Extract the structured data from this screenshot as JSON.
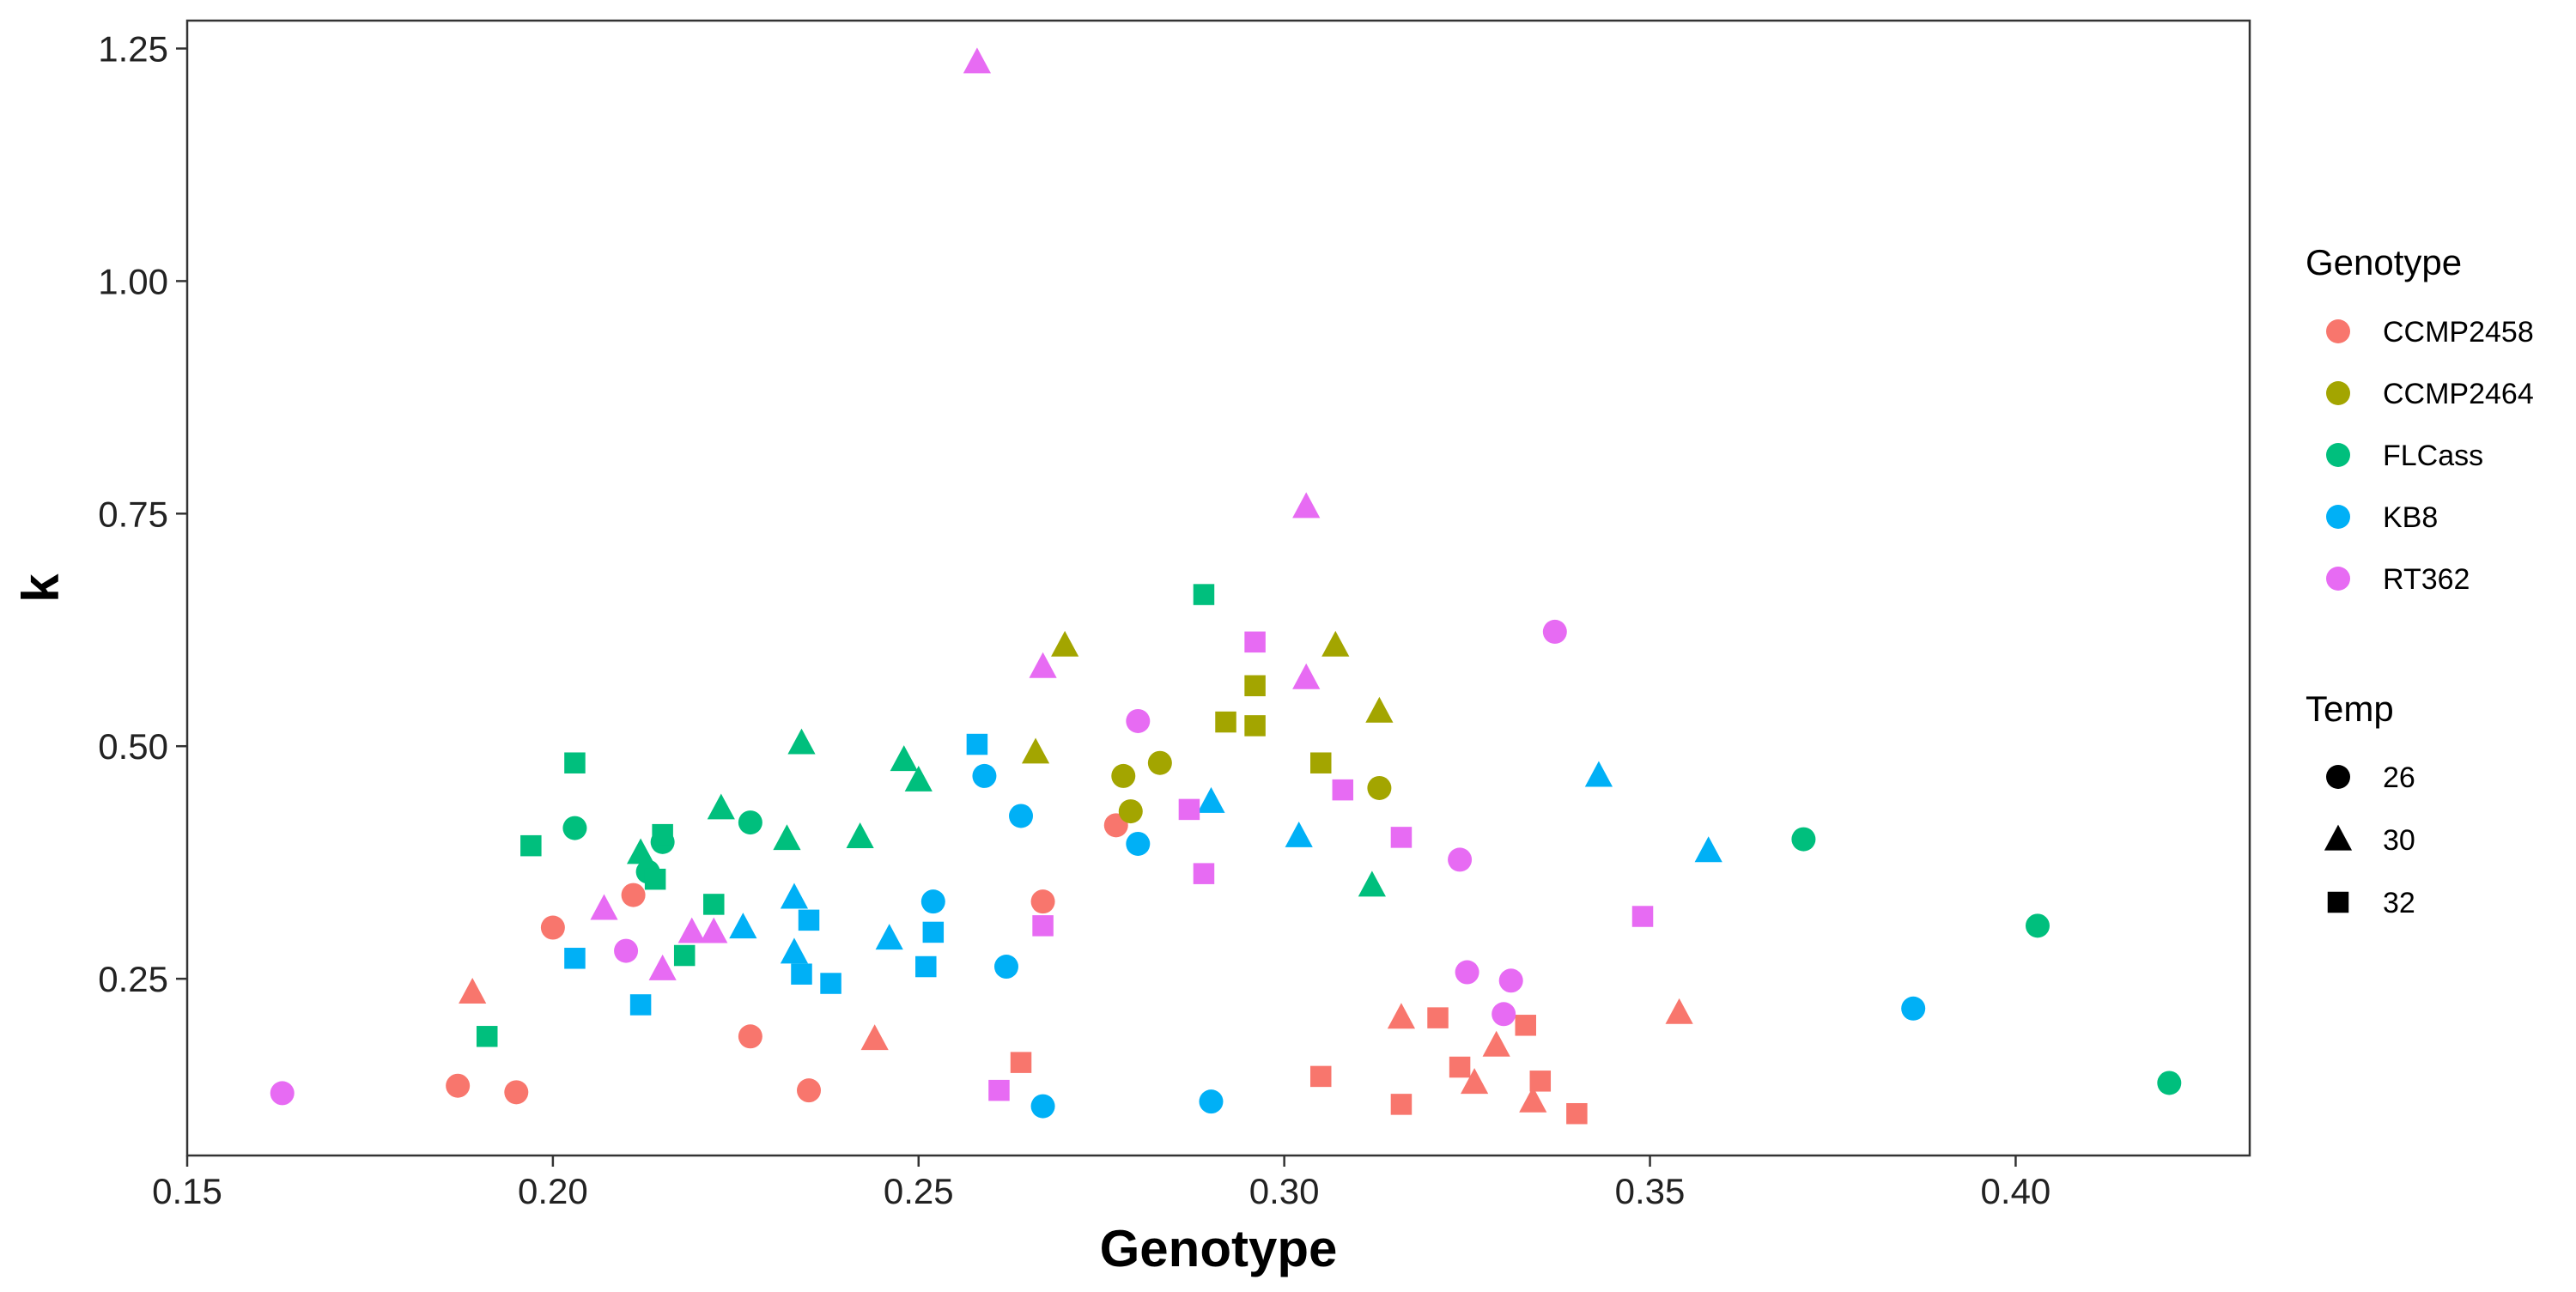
{
  "chart_data": {
    "type": "scatter",
    "xlabel": "Genotype",
    "ylabel": "k",
    "xlim": [
      0.15,
      0.432
    ],
    "ylim": [
      0.06,
      1.28
    ],
    "x_ticks": [
      0.15,
      0.2,
      0.25,
      0.3,
      0.35,
      0.4
    ],
    "x_tick_labels": [
      "0.15",
      "0.20",
      "0.25",
      "0.30",
      "0.35",
      "0.40"
    ],
    "y_ticks": [
      0.25,
      0.5,
      0.75,
      1.0,
      1.25
    ],
    "y_tick_labels": [
      "0.25",
      "0.50",
      "0.75",
      "1.00",
      "1.25"
    ],
    "grid": false,
    "legend_position": "right",
    "legend_color": {
      "title": "Genotype",
      "entries": [
        {
          "label": "CCMP2458",
          "color": "#F8766D"
        },
        {
          "label": "CCMP2464",
          "color": "#A3A500"
        },
        {
          "label": "FLCass",
          "color": "#00BF7D"
        },
        {
          "label": "KB8",
          "color": "#00B0F6"
        },
        {
          "label": "RT362",
          "color": "#E76BF3"
        }
      ]
    },
    "legend_shape": {
      "title": "Temp",
      "entries": [
        {
          "label": "26",
          "shape": "circle"
        },
        {
          "label": "30",
          "shape": "triangle"
        },
        {
          "label": "32",
          "shape": "square"
        }
      ]
    },
    "series": [
      {
        "genotype": "CCMP2458",
        "color": "#F8766D",
        "points": [
          {
            "x": 0.187,
            "y": 0.135,
            "temp": "26"
          },
          {
            "x": 0.195,
            "y": 0.128,
            "temp": "26"
          },
          {
            "x": 0.2,
            "y": 0.305,
            "temp": "26"
          },
          {
            "x": 0.211,
            "y": 0.34,
            "temp": "26"
          },
          {
            "x": 0.227,
            "y": 0.188,
            "temp": "26"
          },
          {
            "x": 0.235,
            "y": 0.13,
            "temp": "26"
          },
          {
            "x": 0.267,
            "y": 0.333,
            "temp": "26"
          },
          {
            "x": 0.277,
            "y": 0.415,
            "temp": "26"
          },
          {
            "x": 0.189,
            "y": 0.235,
            "temp": "30"
          },
          {
            "x": 0.244,
            "y": 0.185,
            "temp": "30"
          },
          {
            "x": 0.316,
            "y": 0.208,
            "temp": "30"
          },
          {
            "x": 0.326,
            "y": 0.138,
            "temp": "30"
          },
          {
            "x": 0.329,
            "y": 0.178,
            "temp": "30"
          },
          {
            "x": 0.334,
            "y": 0.118,
            "temp": "30"
          },
          {
            "x": 0.354,
            "y": 0.213,
            "temp": "30"
          },
          {
            "x": 0.264,
            "y": 0.16,
            "temp": "32"
          },
          {
            "x": 0.305,
            "y": 0.145,
            "temp": "32"
          },
          {
            "x": 0.316,
            "y": 0.115,
            "temp": "32"
          },
          {
            "x": 0.321,
            "y": 0.208,
            "temp": "32"
          },
          {
            "x": 0.324,
            "y": 0.155,
            "temp": "32"
          },
          {
            "x": 0.333,
            "y": 0.2,
            "temp": "32"
          },
          {
            "x": 0.335,
            "y": 0.14,
            "temp": "32"
          },
          {
            "x": 0.34,
            "y": 0.105,
            "temp": "32"
          }
        ]
      },
      {
        "genotype": "CCMP2464",
        "color": "#A3A500",
        "points": [
          {
            "x": 0.278,
            "y": 0.468,
            "temp": "26"
          },
          {
            "x": 0.279,
            "y": 0.43,
            "temp": "26"
          },
          {
            "x": 0.283,
            "y": 0.482,
            "temp": "26"
          },
          {
            "x": 0.313,
            "y": 0.455,
            "temp": "26"
          },
          {
            "x": 0.266,
            "y": 0.493,
            "temp": "30"
          },
          {
            "x": 0.27,
            "y": 0.608,
            "temp": "30"
          },
          {
            "x": 0.307,
            "y": 0.608,
            "temp": "30"
          },
          {
            "x": 0.313,
            "y": 0.537,
            "temp": "30"
          },
          {
            "x": 0.292,
            "y": 0.526,
            "temp": "32"
          },
          {
            "x": 0.296,
            "y": 0.522,
            "temp": "32"
          },
          {
            "x": 0.296,
            "y": 0.565,
            "temp": "32"
          },
          {
            "x": 0.305,
            "y": 0.482,
            "temp": "32"
          }
        ]
      },
      {
        "genotype": "FLCass",
        "color": "#00BF7D",
        "points": [
          {
            "x": 0.203,
            "y": 0.412,
            "temp": "26"
          },
          {
            "x": 0.213,
            "y": 0.365,
            "temp": "26"
          },
          {
            "x": 0.215,
            "y": 0.397,
            "temp": "26"
          },
          {
            "x": 0.227,
            "y": 0.418,
            "temp": "26"
          },
          {
            "x": 0.371,
            "y": 0.4,
            "temp": "26"
          },
          {
            "x": 0.403,
            "y": 0.307,
            "temp": "26"
          },
          {
            "x": 0.421,
            "y": 0.138,
            "temp": "26"
          },
          {
            "x": 0.212,
            "y": 0.385,
            "temp": "30"
          },
          {
            "x": 0.223,
            "y": 0.433,
            "temp": "30"
          },
          {
            "x": 0.232,
            "y": 0.4,
            "temp": "30"
          },
          {
            "x": 0.234,
            "y": 0.503,
            "temp": "30"
          },
          {
            "x": 0.242,
            "y": 0.402,
            "temp": "30"
          },
          {
            "x": 0.248,
            "y": 0.485,
            "temp": "30"
          },
          {
            "x": 0.25,
            "y": 0.463,
            "temp": "30"
          },
          {
            "x": 0.312,
            "y": 0.35,
            "temp": "30"
          },
          {
            "x": 0.191,
            "y": 0.188,
            "temp": "32"
          },
          {
            "x": 0.197,
            "y": 0.393,
            "temp": "32"
          },
          {
            "x": 0.203,
            "y": 0.482,
            "temp": "32"
          },
          {
            "x": 0.214,
            "y": 0.357,
            "temp": "32"
          },
          {
            "x": 0.215,
            "y": 0.405,
            "temp": "32"
          },
          {
            "x": 0.218,
            "y": 0.275,
            "temp": "32"
          },
          {
            "x": 0.222,
            "y": 0.33,
            "temp": "32"
          },
          {
            "x": 0.289,
            "y": 0.663,
            "temp": "32"
          }
        ]
      },
      {
        "genotype": "KB8",
        "color": "#00B0F6",
        "points": [
          {
            "x": 0.252,
            "y": 0.333,
            "temp": "26"
          },
          {
            "x": 0.259,
            "y": 0.468,
            "temp": "26"
          },
          {
            "x": 0.262,
            "y": 0.263,
            "temp": "26"
          },
          {
            "x": 0.264,
            "y": 0.425,
            "temp": "26"
          },
          {
            "x": 0.267,
            "y": 0.113,
            "temp": "26"
          },
          {
            "x": 0.28,
            "y": 0.395,
            "temp": "26"
          },
          {
            "x": 0.29,
            "y": 0.118,
            "temp": "26"
          },
          {
            "x": 0.386,
            "y": 0.218,
            "temp": "26"
          },
          {
            "x": 0.226,
            "y": 0.305,
            "temp": "30"
          },
          {
            "x": 0.233,
            "y": 0.337,
            "temp": "30"
          },
          {
            "x": 0.233,
            "y": 0.278,
            "temp": "30"
          },
          {
            "x": 0.246,
            "y": 0.293,
            "temp": "30"
          },
          {
            "x": 0.29,
            "y": 0.44,
            "temp": "30"
          },
          {
            "x": 0.302,
            "y": 0.403,
            "temp": "30"
          },
          {
            "x": 0.343,
            "y": 0.468,
            "temp": "30"
          },
          {
            "x": 0.358,
            "y": 0.387,
            "temp": "30"
          },
          {
            "x": 0.203,
            "y": 0.272,
            "temp": "32"
          },
          {
            "x": 0.212,
            "y": 0.222,
            "temp": "32"
          },
          {
            "x": 0.234,
            "y": 0.255,
            "temp": "32"
          },
          {
            "x": 0.235,
            "y": 0.313,
            "temp": "32"
          },
          {
            "x": 0.238,
            "y": 0.245,
            "temp": "32"
          },
          {
            "x": 0.251,
            "y": 0.263,
            "temp": "32"
          },
          {
            "x": 0.252,
            "y": 0.3,
            "temp": "32"
          },
          {
            "x": 0.258,
            "y": 0.502,
            "temp": "32"
          }
        ]
      },
      {
        "genotype": "RT362",
        "color": "#E76BF3",
        "points": [
          {
            "x": 0.163,
            "y": 0.127,
            "temp": "26"
          },
          {
            "x": 0.21,
            "y": 0.28,
            "temp": "26"
          },
          {
            "x": 0.28,
            "y": 0.527,
            "temp": "26"
          },
          {
            "x": 0.324,
            "y": 0.378,
            "temp": "26"
          },
          {
            "x": 0.325,
            "y": 0.257,
            "temp": "26"
          },
          {
            "x": 0.33,
            "y": 0.212,
            "temp": "26"
          },
          {
            "x": 0.331,
            "y": 0.248,
            "temp": "26"
          },
          {
            "x": 0.337,
            "y": 0.623,
            "temp": "26"
          },
          {
            "x": 0.207,
            "y": 0.325,
            "temp": "30"
          },
          {
            "x": 0.215,
            "y": 0.26,
            "temp": "30"
          },
          {
            "x": 0.219,
            "y": 0.3,
            "temp": "30"
          },
          {
            "x": 0.222,
            "y": 0.3,
            "temp": "30"
          },
          {
            "x": 0.258,
            "y": 1.235,
            "temp": "30"
          },
          {
            "x": 0.267,
            "y": 0.585,
            "temp": "30"
          },
          {
            "x": 0.303,
            "y": 0.573,
            "temp": "30"
          },
          {
            "x": 0.303,
            "y": 0.757,
            "temp": "30"
          },
          {
            "x": 0.261,
            "y": 0.13,
            "temp": "32"
          },
          {
            "x": 0.267,
            "y": 0.307,
            "temp": "32"
          },
          {
            "x": 0.287,
            "y": 0.432,
            "temp": "32"
          },
          {
            "x": 0.289,
            "y": 0.363,
            "temp": "32"
          },
          {
            "x": 0.296,
            "y": 0.612,
            "temp": "32"
          },
          {
            "x": 0.308,
            "y": 0.453,
            "temp": "32"
          },
          {
            "x": 0.316,
            "y": 0.402,
            "temp": "32"
          },
          {
            "x": 0.349,
            "y": 0.317,
            "temp": "32"
          }
        ]
      }
    ]
  }
}
